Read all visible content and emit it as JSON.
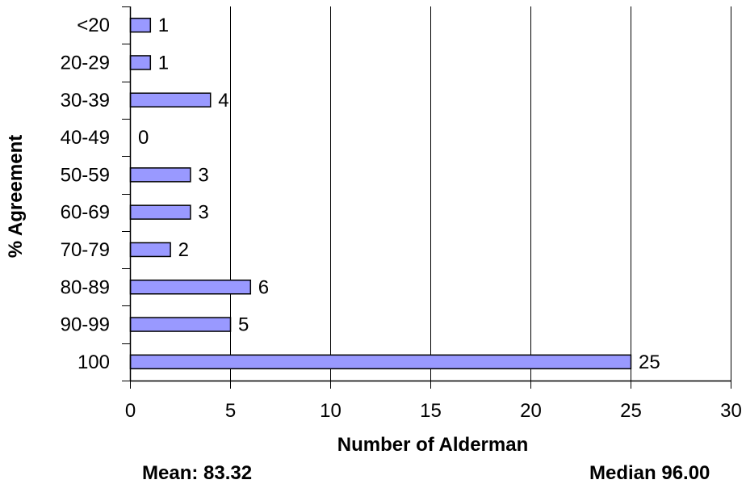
{
  "chart_data": {
    "type": "bar",
    "orientation": "horizontal",
    "categories": [
      "<20",
      "20-29",
      "30-39",
      "40-49",
      "50-59",
      "60-69",
      "70-79",
      "80-89",
      "90-99",
      "100"
    ],
    "values": [
      1,
      1,
      4,
      0,
      3,
      3,
      2,
      6,
      5,
      25
    ],
    "value_labels": [
      "1",
      "1",
      "4",
      "0",
      "3",
      "3",
      "2",
      "6",
      "5",
      "25"
    ],
    "xlabel": "Number of Alderman",
    "ylabel": "% Agreement",
    "xlim": [
      0,
      30
    ],
    "xticks": [
      0,
      5,
      10,
      15,
      20,
      25,
      30
    ],
    "xtick_labels": [
      "0",
      "5",
      "10",
      "15",
      "20",
      "25",
      "30"
    ],
    "grid": "vertical",
    "bar_color": "#9999ff",
    "bar_edge_color": "#000000",
    "annotations": {
      "mean": "Mean: 83.32",
      "median": "Median 96.00"
    }
  }
}
